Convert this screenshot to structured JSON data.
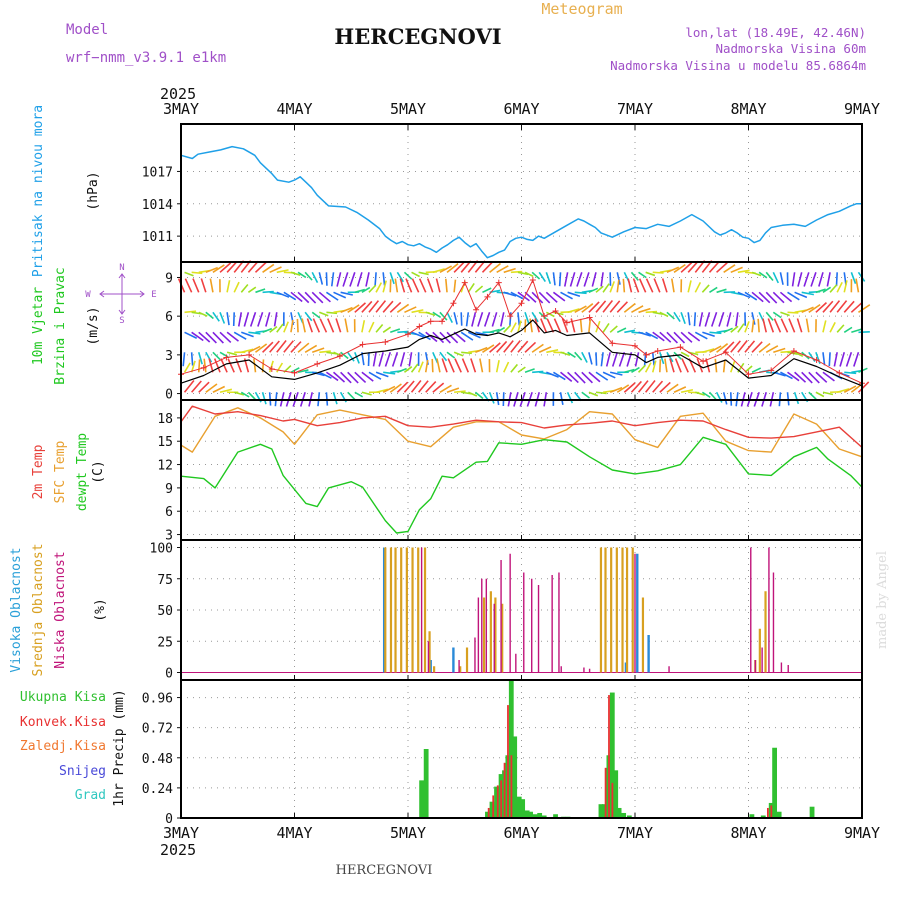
{
  "header": {
    "model_label": "Model",
    "model_name": "wrf−nmm_v3.9.1  e1km",
    "station": "HERCEGNOVI",
    "meteogram_label": "Meteogram",
    "coords": "lon,lat (18.49E, 42.46N)",
    "elevation": "Nadmorska Visina 60m",
    "model_elevation": "Nadmorska Visina u modelu 85.6864m",
    "footer_station": "HERCEGNOVI",
    "credit": "made by Angel"
  },
  "time_axis": {
    "year": "2025",
    "labels": [
      "3MAY",
      "4MAY",
      "5MAY",
      "6MAY",
      "7MAY",
      "8MAY",
      "9MAY"
    ]
  },
  "compass": {
    "n": "N",
    "s": "S",
    "w": "W",
    "e": "E"
  },
  "colors": {
    "pressure": "#1fa0e8",
    "t2m": "#e8403a",
    "sfc": "#e8a030",
    "dew": "#20c820",
    "high_cloud": "#2a8ad8",
    "mid_cloud": "#d8a020",
    "low_cloud": "#c0147a",
    "total_precip": "#30c030",
    "conv_precip": "#e83030",
    "frozen_precip": "#f07830",
    "snow": "#4848d8",
    "graupel": "#30c8c0",
    "gust": "#e83030",
    "wind": "#000000"
  },
  "chart_data": [
    {
      "type": "line",
      "id": "pressure",
      "ylabel": "Pritisak na nivou mora",
      "unit": "(hPa)",
      "ylim": [
        1008.6,
        1021.4
      ],
      "yticks": [
        "1011",
        "1014",
        "1017"
      ],
      "grid": true,
      "series": [
        {
          "x": [
            0,
            0.1,
            0.15,
            0.25,
            0.35,
            0.45,
            0.55,
            0.65,
            0.7,
            0.8,
            0.85,
            0.95,
            1.0,
            1.05,
            1.1,
            1.15,
            1.2,
            1.3,
            1.45,
            1.55,
            1.65,
            1.75,
            1.8,
            1.85,
            1.9,
            1.95,
            2.0,
            2.05,
            2.1,
            2.15,
            2.2,
            2.25,
            2.3,
            2.35,
            2.4,
            2.45,
            2.5,
            2.55,
            2.6,
            2.65,
            2.7,
            2.75,
            2.8,
            2.85,
            2.9,
            2.95,
            3.0,
            3.05,
            3.1,
            3.15,
            3.2,
            3.3,
            3.4,
            3.5,
            3.55,
            3.6,
            3.65,
            3.7,
            3.8,
            3.9,
            4.0,
            4.1,
            4.2,
            4.3,
            4.4,
            4.5,
            4.6,
            4.7,
            4.75,
            4.8,
            4.85,
            4.9,
            4.95,
            5.0,
            5.05,
            5.1,
            5.15,
            5.2,
            5.3,
            5.4,
            5.5,
            5.6,
            5.7,
            5.8,
            5.9,
            5.95,
            6.0
          ],
          "values": [
            1018.5,
            1018.2,
            1018.6,
            1018.8,
            1019.0,
            1019.3,
            1019.1,
            1018.5,
            1017.8,
            1016.8,
            1016.2,
            1016.0,
            1016.2,
            1016.5,
            1016.0,
            1015.5,
            1014.8,
            1013.8,
            1013.7,
            1013.2,
            1012.5,
            1011.7,
            1011.0,
            1010.6,
            1010.3,
            1010.5,
            1010.2,
            1010.1,
            1010.3,
            1010.0,
            1009.8,
            1009.5,
            1009.9,
            1010.2,
            1010.6,
            1010.9,
            1010.4,
            1010.0,
            1010.3,
            1009.6,
            1009.0,
            1009.2,
            1009.5,
            1009.7,
            1010.5,
            1010.8,
            1010.9,
            1010.7,
            1010.6,
            1011.0,
            1010.8,
            1011.4,
            1012.0,
            1012.6,
            1012.4,
            1012.1,
            1011.8,
            1011.3,
            1010.9,
            1011.4,
            1011.8,
            1011.7,
            1012.1,
            1011.9,
            1012.4,
            1013.0,
            1012.4,
            1011.4,
            1011.1,
            1011.3,
            1011.6,
            1011.3,
            1010.9,
            1010.8,
            1010.4,
            1010.6,
            1011.3,
            1011.8,
            1012.0,
            1012.1,
            1011.9,
            1012.5,
            1013.0,
            1013.3,
            1013.8,
            1014.0,
            1014.0
          ]
        }
      ]
    },
    {
      "type": "line",
      "id": "wind",
      "ylabel": "10m Vjetar",
      "ylabel2": "Brzina i Pravac",
      "unit": "(m/s)",
      "ylim": [
        -0.5,
        10.2
      ],
      "yticks": [
        "0",
        "3",
        "6",
        "9"
      ],
      "grid": true,
      "series": [
        {
          "name": "speed",
          "x": [
            0,
            0.2,
            0.4,
            0.6,
            0.8,
            1.0,
            1.2,
            1.4,
            1.6,
            1.8,
            2.0,
            2.1,
            2.2,
            2.3,
            2.4,
            2.5,
            2.6,
            2.7,
            2.8,
            2.9,
            3.0,
            3.1,
            3.2,
            3.3,
            3.4,
            3.6,
            3.8,
            4.0,
            4.1,
            4.2,
            4.4,
            4.6,
            4.8,
            5.0,
            5.2,
            5.4,
            5.6,
            5.8,
            6.0
          ],
          "values": [
            0.8,
            1.4,
            2.3,
            2.6,
            1.3,
            1.1,
            1.6,
            2.2,
            3.1,
            3.3,
            3.6,
            4.2,
            4.5,
            4.2,
            4.6,
            5.0,
            4.6,
            4.5,
            4.7,
            4.4,
            4.9,
            5.7,
            4.7,
            4.9,
            4.5,
            4.7,
            3.2,
            3.0,
            2.4,
            2.8,
            3.0,
            2.0,
            2.6,
            1.2,
            1.4,
            2.7,
            2.1,
            1.3,
            0.6
          ]
        },
        {
          "name": "gust",
          "x": [
            0,
            0.2,
            0.4,
            0.6,
            0.8,
            1.0,
            1.2,
            1.4,
            1.6,
            1.8,
            2.0,
            2.1,
            2.2,
            2.3,
            2.4,
            2.5,
            2.6,
            2.7,
            2.8,
            2.9,
            3.0,
            3.1,
            3.2,
            3.3,
            3.4,
            3.6,
            3.8,
            4.0,
            4.1,
            4.2,
            4.4,
            4.6,
            4.8,
            5.0,
            5.2,
            5.4,
            5.6,
            5.8,
            6.0
          ],
          "values": [
            1.5,
            2.0,
            2.8,
            3.0,
            1.9,
            1.6,
            2.3,
            2.9,
            3.8,
            4.0,
            4.6,
            5.2,
            5.6,
            5.6,
            7.0,
            8.6,
            6.5,
            7.5,
            8.6,
            6.0,
            7.0,
            8.8,
            6.0,
            6.4,
            5.5,
            5.9,
            3.9,
            3.7,
            3.0,
            3.3,
            3.6,
            2.5,
            3.2,
            1.5,
            1.8,
            3.3,
            2.6,
            1.6,
            0.8
          ]
        }
      ]
    },
    {
      "type": "line",
      "id": "temperature",
      "ylabel": "2m Temp",
      "ylabel2": "SFC Temp",
      "ylabel3": "dewpt Temp",
      "unit": "(C)",
      "ylim": [
        2.3,
        20.3
      ],
      "yticks": [
        "3",
        "6",
        "9",
        "12",
        "15",
        "18"
      ],
      "grid": true,
      "series": [
        {
          "name": "2m Temp",
          "x": [
            0,
            0.1,
            0.3,
            0.5,
            0.7,
            0.9,
            1.0,
            1.2,
            1.4,
            1.6,
            1.8,
            2.0,
            2.2,
            2.4,
            2.6,
            2.8,
            3.0,
            3.2,
            3.4,
            3.6,
            3.8,
            4.0,
            4.2,
            4.4,
            4.6,
            4.8,
            5.0,
            5.2,
            5.4,
            5.6,
            5.8,
            6.0
          ],
          "values": [
            17.5,
            19.5,
            18.5,
            18.8,
            18.3,
            17.6,
            17.8,
            17.0,
            17.4,
            18.0,
            18.2,
            17.0,
            16.8,
            17.2,
            17.7,
            17.5,
            17.4,
            16.7,
            17.1,
            17.3,
            17.6,
            17.0,
            17.4,
            17.7,
            17.6,
            16.5,
            15.5,
            15.4,
            15.6,
            16.2,
            16.8,
            14.2
          ]
        },
        {
          "name": "SFC Temp",
          "x": [
            0,
            0.1,
            0.3,
            0.5,
            0.7,
            0.9,
            1.0,
            1.2,
            1.4,
            1.6,
            1.8,
            2.0,
            2.2,
            2.4,
            2.6,
            2.8,
            3.0,
            3.2,
            3.4,
            3.6,
            3.8,
            4.0,
            4.2,
            4.4,
            4.6,
            4.8,
            5.0,
            5.2,
            5.4,
            5.6,
            5.8,
            6.0
          ],
          "values": [
            14.5,
            13.6,
            18.2,
            19.3,
            18.0,
            16.2,
            14.6,
            18.4,
            19.0,
            18.4,
            17.8,
            15.0,
            14.3,
            16.8,
            17.5,
            17.5,
            15.8,
            15.3,
            16.5,
            18.8,
            18.5,
            15.2,
            14.2,
            18.2,
            18.6,
            15.0,
            13.8,
            13.6,
            18.5,
            17.2,
            14.0,
            13.0
          ]
        },
        {
          "name": "dewpt Temp",
          "x": [
            0,
            0.2,
            0.3,
            0.5,
            0.7,
            0.8,
            0.9,
            1.0,
            1.1,
            1.2,
            1.3,
            1.5,
            1.6,
            1.8,
            1.9,
            2.0,
            2.1,
            2.2,
            2.3,
            2.4,
            2.6,
            2.7,
            2.8,
            3.0,
            3.2,
            3.4,
            3.6,
            3.8,
            4.0,
            4.2,
            4.4,
            4.6,
            4.8,
            5.0,
            5.2,
            5.4,
            5.6,
            5.7,
            5.9,
            6.0
          ],
          "values": [
            10.5,
            10.2,
            9.0,
            13.6,
            14.6,
            14.0,
            10.6,
            8.8,
            7.0,
            6.6,
            9.0,
            9.8,
            9.1,
            4.8,
            3.2,
            3.4,
            6.2,
            7.6,
            10.5,
            10.3,
            12.3,
            12.4,
            14.8,
            14.6,
            15.2,
            14.9,
            13.0,
            11.3,
            10.8,
            11.2,
            12.0,
            15.5,
            14.6,
            10.8,
            10.6,
            13.0,
            14.2,
            12.7,
            10.6,
            9.1
          ]
        }
      ]
    },
    {
      "type": "bar",
      "id": "clouds",
      "ylabel": "Visoka Oblacnost",
      "ylabel2": "Srednja Oblacnost",
      "ylabel3": "Niska Oblacnost",
      "unit": "(%)",
      "ylim": [
        -6,
        106
      ],
      "yticks": [
        "0",
        "25",
        "50",
        "75",
        "100"
      ],
      "grid": true,
      "series": [
        {
          "name": "high",
          "x": [
            1.79,
            2.2,
            2.4,
            3.92,
            4.02,
            4.12
          ],
          "values": [
            100,
            10,
            20,
            8,
            95,
            30
          ]
        },
        {
          "name": "mid",
          "x": [
            1.8,
            1.85,
            1.89,
            1.94,
            1.99,
            2.04,
            2.09,
            2.15,
            2.19,
            2.23,
            2.46,
            2.52,
            2.67,
            2.73,
            2.77,
            2.83,
            3.7,
            3.74,
            3.79,
            3.84,
            3.89,
            3.93,
            3.98,
            4.07,
            5.06,
            5.1,
            5.15
          ],
          "values": [
            100,
            100,
            100,
            100,
            100,
            100,
            100,
            100,
            33,
            5,
            5,
            20,
            60,
            65,
            60,
            55,
            100,
            100,
            100,
            100,
            100,
            100,
            100,
            60,
            10,
            35,
            65
          ]
        },
        {
          "name": "low",
          "x": [
            2.12,
            2.18,
            2.45,
            2.59,
            2.62,
            2.65,
            2.69,
            2.76,
            2.82,
            2.9,
            2.95,
            3.02,
            3.09,
            3.15,
            3.27,
            3.33,
            3.35,
            3.55,
            3.6,
            4.0,
            4.3,
            5.02,
            5.06,
            5.12,
            5.18,
            5.22,
            5.29,
            5.35
          ],
          "values": [
            100,
            25,
            10,
            28,
            60,
            75,
            75,
            55,
            90,
            95,
            15,
            80,
            75,
            70,
            78,
            80,
            5,
            4,
            3,
            95,
            5,
            100,
            10,
            20,
            100,
            80,
            8,
            6
          ]
        }
      ]
    },
    {
      "type": "bar",
      "id": "precip",
      "ylabel": "1hr Precip (mm)",
      "legend": [
        "Ukupna Kisa",
        "Konvek.Kisa",
        "Zaledj.Kisa",
        "Snijeg",
        "Grad"
      ],
      "ylim": [
        0,
        1.1
      ],
      "yticks": [
        "0",
        "0.24",
        "0.48",
        "0.72",
        "0.96"
      ],
      "grid": true,
      "series": [
        {
          "name": "Ukupna Kisa",
          "x": [
            2.12,
            2.16,
            2.7,
            2.74,
            2.78,
            2.82,
            2.85,
            2.88,
            2.91,
            2.94,
            2.98,
            3.01,
            3.05,
            3.08,
            3.12,
            3.16,
            3.2,
            3.3,
            3.37,
            3.41,
            3.7,
            3.73,
            3.77,
            3.8,
            3.83,
            3.86,
            3.9,
            3.95,
            5.03,
            5.13,
            5.2,
            5.23,
            5.27,
            5.56
          ],
          "values": [
            0.3,
            0.55,
            0.05,
            0.13,
            0.25,
            0.35,
            0.38,
            0.5,
            1.1,
            0.65,
            0.17,
            0.15,
            0.06,
            0.05,
            0.03,
            0.04,
            0.02,
            0.03,
            0.01,
            0.01,
            0.11,
            0.11,
            0.5,
            1.0,
            0.38,
            0.08,
            0.04,
            0.02,
            0.03,
            0.02,
            0.12,
            0.56,
            0.05,
            0.09
          ]
        },
        {
          "name": "Konvek.Kisa",
          "x": [
            2.74,
            2.78,
            2.82,
            2.85,
            2.88,
            2.91,
            2.94,
            3.77,
            3.8,
            3.83,
            5.2,
            5.23
          ],
          "values": [
            0.08,
            0.18,
            0.26,
            0.3,
            0.44,
            0.9,
            0.5,
            0.4,
            0.98,
            0.28,
            0.08,
            0.1
          ]
        }
      ]
    }
  ]
}
